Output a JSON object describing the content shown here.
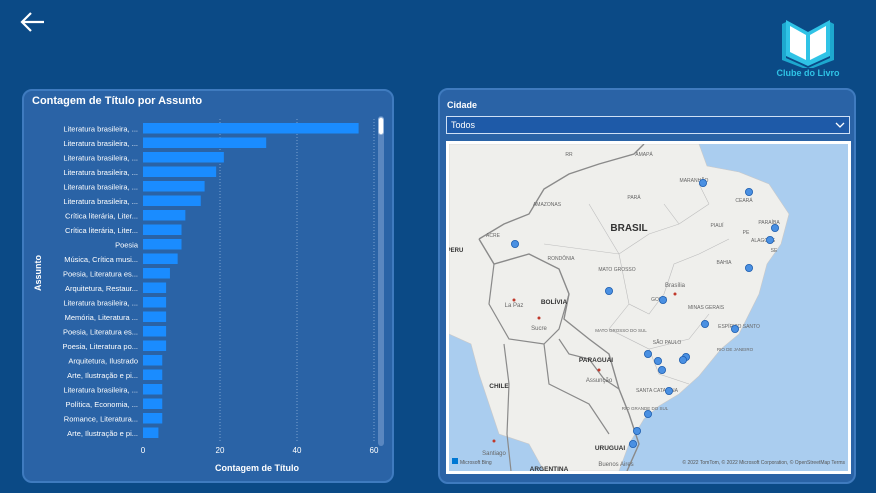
{
  "header": {
    "back_icon": "arrow-left-icon"
  },
  "logo": {
    "icon": "open-book-icon",
    "text": "Clube do Livro",
    "color": "#2fc3e6"
  },
  "chart_panel": {
    "title": "Contagem de Título por Assunto"
  },
  "chart_data": {
    "type": "bar",
    "orientation": "horizontal",
    "title": "Contagem de Título por Assunto",
    "xlabel": "Contagem de Título",
    "ylabel": "Assunto",
    "xlim": [
      0,
      60
    ],
    "xticks": [
      0,
      20,
      40,
      60
    ],
    "grid": true,
    "bar_color": "#1a8cff",
    "categories": [
      "Literatura brasileira, ...",
      "Literatura brasileira, ...",
      "Literatura brasileira, ...",
      "Literatura brasileira, ...",
      "Literatura brasileira, ...",
      "Literatura brasileira, ...",
      "Crítica literária, Liter...",
      "Crítica literária, Liter...",
      "Poesia",
      "Música, Crítica musi...",
      "Poesia, Literatura es...",
      "Arquitetura, Restaur...",
      "Literatura brasileira, ...",
      "Memória, Literatura ...",
      "Poesia, Literatura es...",
      "Poesia, Literatura po...",
      "Arquitetura, Ilustrado",
      "Arte, Ilustração e pi...",
      "Literatura brasileira, ...",
      "Política, Economia, ...",
      "Romance, Literatura...",
      "Arte, Ilustração e pi..."
    ],
    "values": [
      56,
      32,
      21,
      19,
      16,
      15,
      11,
      10,
      10,
      9,
      7,
      6,
      6,
      6,
      6,
      6,
      5,
      5,
      5,
      5,
      5,
      4
    ]
  },
  "slicer": {
    "label": "Cidade",
    "value": "Todos",
    "chevron_icon": "chevron-down-icon"
  },
  "map": {
    "region_labels": [
      "RR",
      "AMAPÁ",
      "AMAZONAS",
      "PARÁ",
      "MARANHÃO",
      "CEARÁ",
      "BRASIL",
      "PIAUÍ",
      "PARAÍBA",
      "PE",
      "ALAGOAS",
      "SE",
      "ACRE",
      "RONDÔNIA",
      "MATO GROSSO",
      "BAHIA",
      "Brasília",
      "GOIÁS",
      "MINAS GERAIS",
      "ESPÍRITO SANTO",
      "MATO GROSSO DO SUL",
      "SÃO PAULO",
      "RIO DE JANEIRO",
      "La Paz",
      "BOLÍVIA",
      "Sucre",
      "PARAGUAI",
      "Assunção",
      "SANTA CATARINA",
      "RIO GRANDE DO SUL",
      "CHILE",
      "URUGUAI",
      "Santiago",
      "Buenos Aires",
      "ARGENTINA",
      "PERU"
    ],
    "attribution": "© 2022 TomTom, © 2022 Microsoft Corporation, © OpenStreetMap  Terms",
    "bing_label": "Microsoft Bing",
    "point_color": "#4a90e2"
  }
}
